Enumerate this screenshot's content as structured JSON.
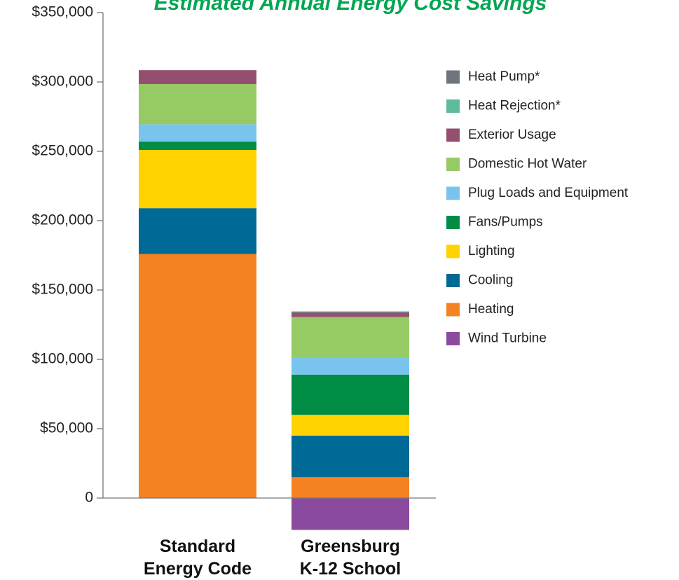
{
  "chart_data": {
    "type": "bar",
    "stacked": true,
    "title": "Estimated Annual Energy Cost Savings",
    "title_color": "#00a651",
    "categories": [
      "Standard Energy Code",
      "Greensburg K-12 School"
    ],
    "category_label_lines": [
      [
        "Standard",
        "Energy Code"
      ],
      [
        "Greensburg",
        "K-12 School"
      ]
    ],
    "ylim": [
      0,
      350000
    ],
    "yticks": [
      0,
      50000,
      100000,
      150000,
      200000,
      250000,
      300000,
      350000
    ],
    "ytick_labels": [
      "0",
      "$50,000",
      "$100,000",
      "$150,000",
      "$200,000",
      "$250,000",
      "$300,000",
      "$350,000"
    ],
    "grid": false,
    "legend_position": "right",
    "series": [
      {
        "name": "Heating",
        "color": "#f58220",
        "values": [
          176000,
          15000
        ]
      },
      {
        "name": "Cooling",
        "color": "#006a96",
        "values": [
          33000,
          30000
        ]
      },
      {
        "name": "Lighting",
        "color": "#ffd200",
        "values": [
          42000,
          15000
        ]
      },
      {
        "name": "Fans/Pumps",
        "color": "#008c44",
        "values": [
          6000,
          29000
        ]
      },
      {
        "name": "Plug Loads and Equipment",
        "color": "#78c4ee",
        "values": [
          12500,
          12500
        ]
      },
      {
        "name": "Domestic Hot Water",
        "color": "#96ca64",
        "values": [
          29000,
          29000
        ]
      },
      {
        "name": "Exterior Usage",
        "color": "#944f6f",
        "values": [
          10000,
          3000
        ]
      },
      {
        "name": "Heat Rejection*",
        "color": "#5fb99c",
        "values": [
          0,
          0
        ]
      },
      {
        "name": "Heat Pump*",
        "color": "#6e757d",
        "values": [
          0,
          1000
        ]
      },
      {
        "name": "Wind Turbine",
        "color": "#8a4a9d",
        "values": [
          0,
          -23000
        ]
      }
    ],
    "legend_order": [
      "Heat Pump*",
      "Heat Rejection*",
      "Exterior Usage",
      "Domestic Hot Water",
      "Plug Loads and Equipment",
      "Fans/Pumps",
      "Lighting",
      "Cooling",
      "Heating",
      "Wind Turbine"
    ]
  }
}
